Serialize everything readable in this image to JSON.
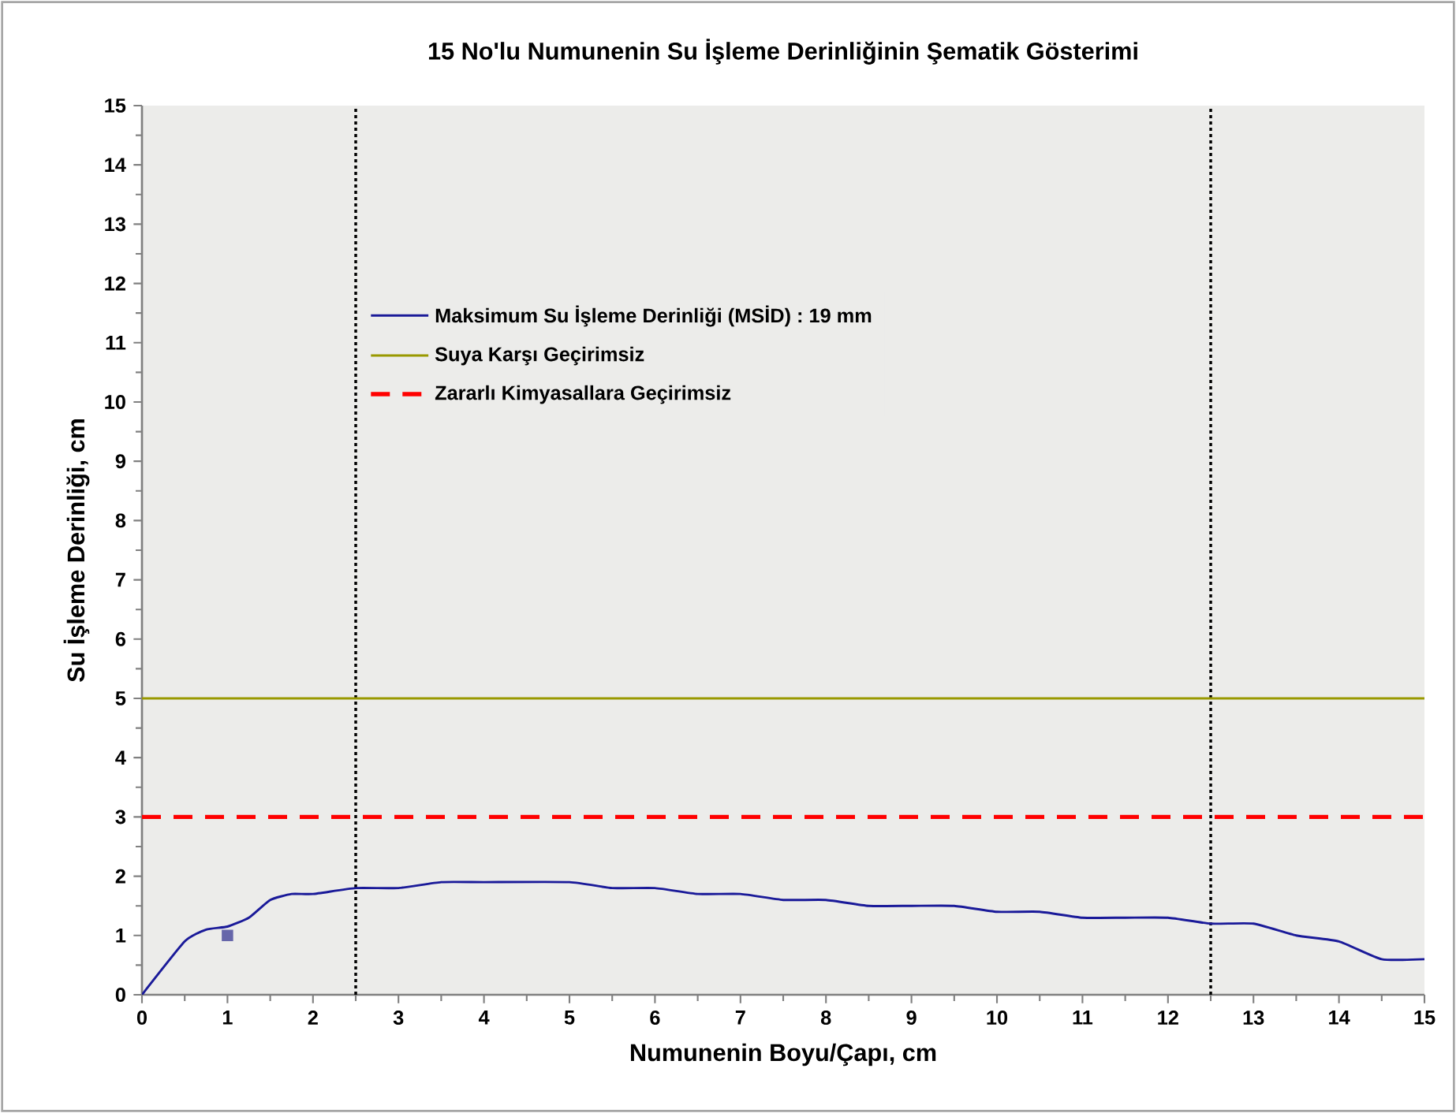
{
  "chart_data": {
    "type": "line",
    "title": "15 No'lu Numunenin Su İşleme Derinliğinin Şematik Gösterimi",
    "xlabel": "Numunenin Boyu/Çapı, cm",
    "ylabel": "Su İşleme Derinliği, cm",
    "xlim": [
      0,
      15
    ],
    "ylim": [
      0,
      15
    ],
    "xticks": [
      0,
      1,
      2,
      3,
      4,
      5,
      6,
      7,
      8,
      9,
      10,
      11,
      12,
      13,
      14,
      15
    ],
    "yticks": [
      0,
      1,
      2,
      3,
      4,
      5,
      6,
      7,
      8,
      9,
      10,
      11,
      12,
      13,
      14,
      15
    ],
    "grid": false,
    "legend": "top left",
    "series": [
      {
        "name": "Maksimum Su İşleme Derinliği (MSİD) : 19 mm",
        "color": "#1a1a99",
        "line_style": "solid",
        "x": [
          0,
          0.5,
          0.75,
          1,
          1.25,
          1.5,
          1.75,
          2,
          2.5,
          3,
          3.5,
          4,
          5,
          5.5,
          6,
          6.5,
          7,
          7.5,
          8,
          8.5,
          9,
          9.5,
          10,
          10.5,
          11,
          11.5,
          12,
          12.5,
          13,
          13.5,
          14,
          14.5,
          15
        ],
        "values": [
          0,
          0.9,
          1.1,
          1.15,
          1.3,
          1.6,
          1.7,
          1.7,
          1.8,
          1.8,
          1.9,
          1.9,
          1.9,
          1.8,
          1.8,
          1.7,
          1.7,
          1.6,
          1.6,
          1.5,
          1.5,
          1.5,
          1.4,
          1.4,
          1.3,
          1.3,
          1.3,
          1.2,
          1.2,
          1.0,
          0.9,
          0.6,
          0.6
        ]
      },
      {
        "name": "Suya Karşı Geçirimsiz",
        "color": "#999900",
        "line_style": "solid",
        "x": [
          0,
          15
        ],
        "values": [
          5,
          5
        ]
      },
      {
        "name": "Zararlı Kimyasallara Geçirimsiz",
        "color": "#ff0000",
        "line_style": "dashed",
        "x": [
          0,
          15
        ],
        "values": [
          3,
          3
        ]
      },
      {
        "type": "scatter",
        "marker": "square",
        "color": "#6666aa",
        "x": [
          1
        ],
        "values": [
          1
        ]
      }
    ],
    "ref_lines": [
      {
        "axis": "x",
        "value": 2.5,
        "color": "#000000",
        "line_style": "dotted"
      },
      {
        "axis": "x",
        "value": 12.5,
        "color": "#000000",
        "line_style": "dotted"
      }
    ]
  }
}
